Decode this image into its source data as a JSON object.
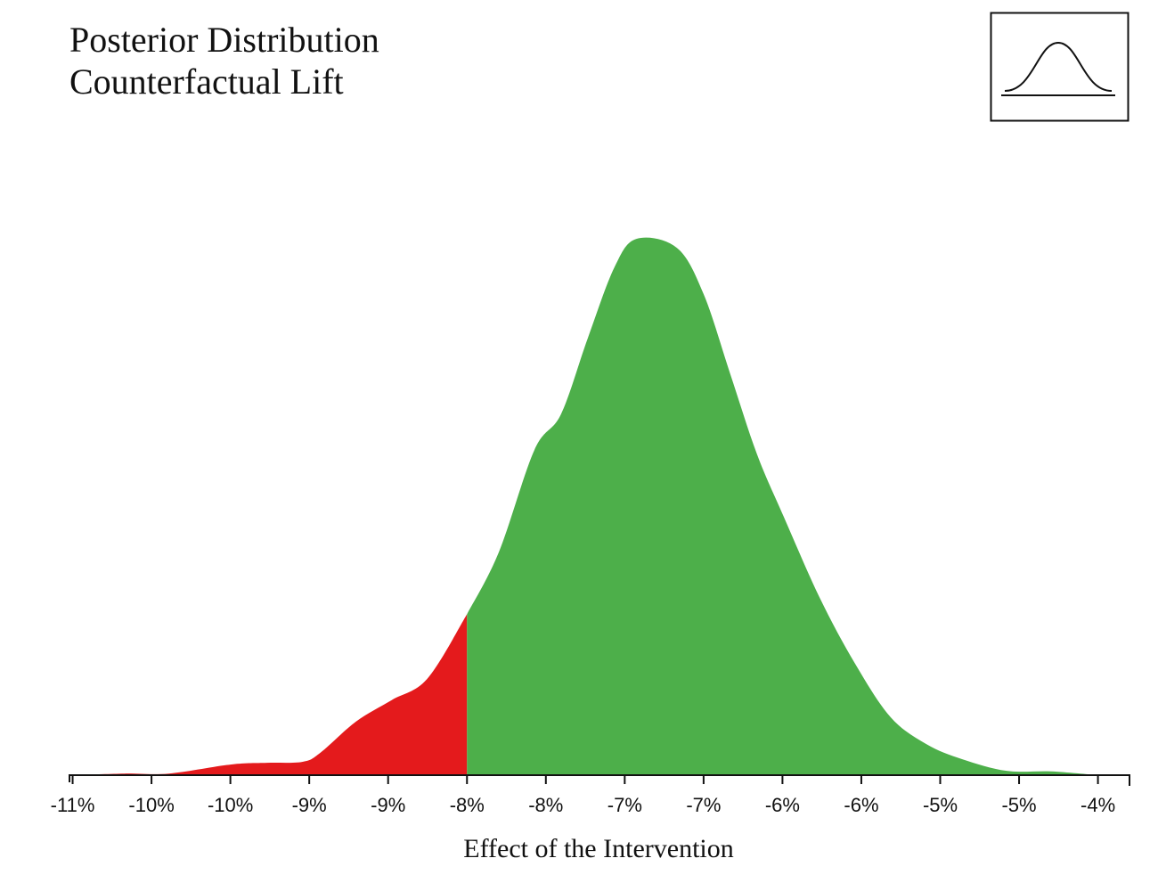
{
  "chart_data": {
    "type": "density",
    "title": "Posterior Distribution",
    "subtitle": "Counterfactual Lift",
    "x_label": "Effect of the Intervention",
    "x": [
      -10.6,
      -10.272,
      -9.99,
      -9.594,
      -9.368,
      -9.142,
      -9.029,
      -8.803,
      -8.577,
      -8.351,
      -8.1,
      -7.899,
      -7.673,
      -7.504,
      -7.335,
      -7.165,
      -7.024,
      -6.769,
      -6.6,
      -6.431,
      -6.261,
      -6.092,
      -5.866,
      -5.64,
      -5.414,
      -5.188,
      -4.962,
      -4.679,
      -4.397,
      -4.103
    ],
    "values": [
      0,
      0.003,
      0.003,
      0.02,
      0.023,
      0.025,
      0.042,
      0.1,
      0.14,
      0.18,
      0.3,
      0.415,
      0.606,
      0.673,
      0.814,
      0.947,
      1.0,
      0.983,
      0.897,
      0.748,
      0.598,
      0.482,
      0.332,
      0.208,
      0.108,
      0.058,
      0.03,
      0.008,
      0.007,
      0
    ],
    "threshold": -8.1,
    "below_color": "#e41a1c",
    "above_color": "#4daf4a",
    "xlim": [
      -10.62,
      -3.9
    ],
    "ylim": [
      0,
      1
    ],
    "xticks": [
      {
        "value": -10.6,
        "label": "-11%"
      },
      {
        "value": -10.1,
        "label": "-10%"
      },
      {
        "value": -9.6,
        "label": "-10%"
      },
      {
        "value": -9.1,
        "label": "-9%"
      },
      {
        "value": -8.6,
        "label": "-9%"
      },
      {
        "value": -8.1,
        "label": "-8%"
      },
      {
        "value": -7.6,
        "label": "-8%"
      },
      {
        "value": -7.1,
        "label": "-7%"
      },
      {
        "value": -6.6,
        "label": "-7%"
      },
      {
        "value": -6.1,
        "label": "-6%"
      },
      {
        "value": -5.6,
        "label": "-6%"
      },
      {
        "value": -5.1,
        "label": "-5%"
      },
      {
        "value": -4.6,
        "label": "-5%"
      },
      {
        "value": -4.1,
        "label": "-4%"
      }
    ]
  }
}
